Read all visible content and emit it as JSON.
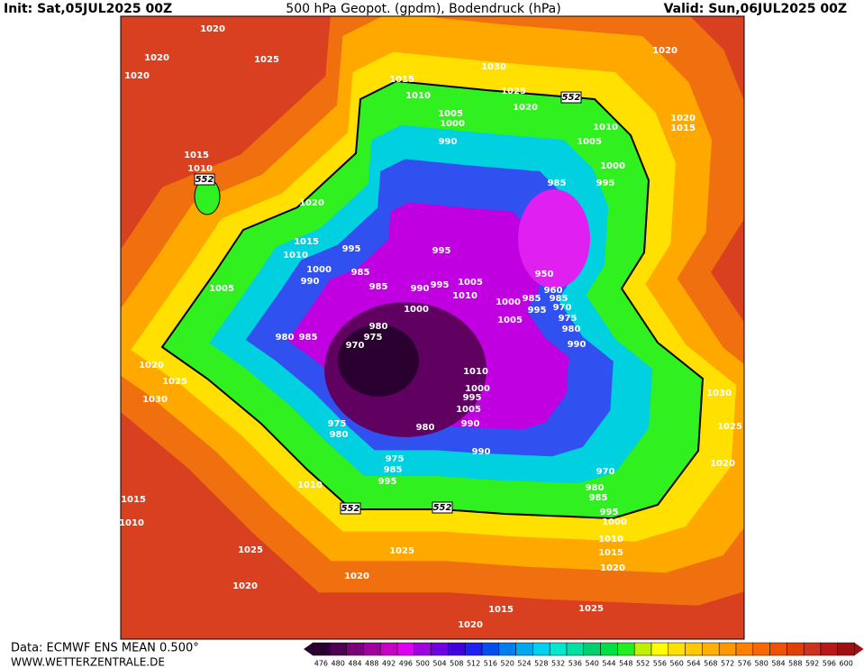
{
  "header": {
    "init": "Init: Sat,05JUL2025 00Z",
    "title": "500 hPa Geopot. (gpdm), Bodendruck (hPa)",
    "valid": "Valid: Sun,06JUL2025 00Z"
  },
  "footer": {
    "source": "Data: ECMWF ENS MEAN 0.500°",
    "site": "WWW.WETTERZENTRALE.DE"
  },
  "colorbar": {
    "levels": [
      476,
      480,
      484,
      488,
      492,
      496,
      500,
      504,
      508,
      512,
      516,
      520,
      524,
      528,
      532,
      536,
      540,
      544,
      548,
      552,
      556,
      560,
      564,
      568,
      572,
      576,
      580,
      584,
      588,
      592,
      596,
      600
    ],
    "colors": [
      "#2a0030",
      "#4b0050",
      "#7a007a",
      "#a000a0",
      "#c800c8",
      "#e000f0",
      "#a000e0",
      "#7000e0",
      "#4000e0",
      "#2020f0",
      "#0050f0",
      "#0080f0",
      "#00a8f0",
      "#00d0f0",
      "#00e8d0",
      "#00e0a0",
      "#00d070",
      "#00e040",
      "#20f020",
      "#c0f000",
      "#ffff00",
      "#ffe000",
      "#ffc800",
      "#ffb000",
      "#ff9800",
      "#ff8000",
      "#f86800",
      "#f05000",
      "#e04000",
      "#d03020",
      "#b81818",
      "#a01010"
    ]
  },
  "map": {
    "labels": [
      "1020",
      "1020",
      "1025",
      "1020",
      "1030",
      "1020",
      "1015",
      "1010",
      "1025",
      "1020",
      "552",
      "1005",
      "1000",
      "1010",
      "1020",
      "1015",
      "990",
      "1005",
      "1015",
      "1010",
      "552",
      "1000",
      "985",
      "995",
      "1020",
      "1015",
      "995",
      "995",
      "1010",
      "1000",
      "985",
      "950",
      "990",
      "1005",
      "985",
      "990",
      "995",
      "1005",
      "1010",
      "960",
      "1000",
      "985",
      "985",
      "995",
      "970",
      "1000",
      "975",
      "1005",
      "980",
      "975",
      "980",
      "980",
      "985",
      "970",
      "990",
      "1020",
      "1010",
      "1025",
      "1000",
      "995",
      "1030",
      "1030",
      "1005",
      "990",
      "975",
      "980",
      "980",
      "1025",
      "990",
      "975",
      "1020",
      "985",
      "970",
      "995",
      "1010",
      "980",
      "985",
      "1015",
      "552",
      "552",
      "995",
      "1000",
      "1010",
      "1010",
      "1025",
      "1025",
      "1015",
      "1020",
      "1020",
      "1020",
      "1015",
      "1025",
      "1020"
    ]
  }
}
